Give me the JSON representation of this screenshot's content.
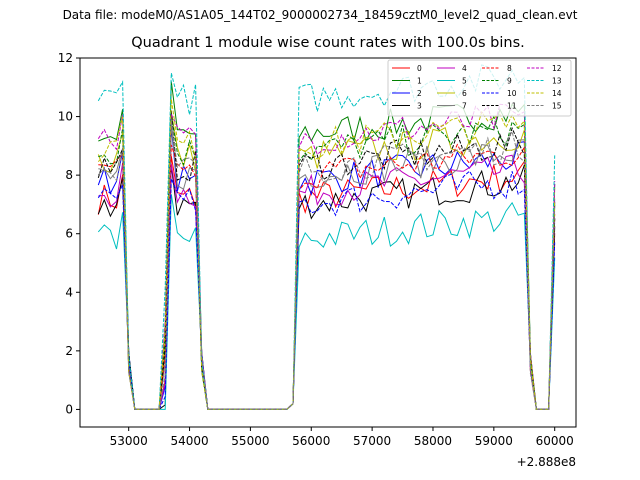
{
  "suptitle": "Data file: modeM0/AS1A05_144T02_9000002734_18459cztM0_level2_quad_clean.evt",
  "chart_data": {
    "type": "line",
    "title": "Quadrant 1 module wise count rates with 100.0s bins.",
    "xlabel": "",
    "ylabel": "",
    "x_offset_label": "+2.888e8",
    "xlim": [
      52200,
      60350
    ],
    "ylim": [
      -0.6,
      12
    ],
    "xticks": [
      53000,
      54000,
      55000,
      56000,
      57000,
      58000,
      59000,
      60000
    ],
    "yticks": [
      0,
      2,
      4,
      6,
      8,
      10,
      12
    ],
    "grid": false,
    "legend_placement": "top-right",
    "segments": [
      {
        "start": 52500,
        "end": 52900
      },
      {
        "start": 53600,
        "end": 54100
      },
      {
        "start": 55700,
        "end": 59500
      },
      {
        "start": 59950,
        "end": 60000
      }
    ],
    "series": [
      {
        "name": "0",
        "color": "#ff0000",
        "dash": "solid",
        "base": 7.2
      },
      {
        "name": "1",
        "color": "#008000",
        "dash": "solid",
        "base": 9.4
      },
      {
        "name": "2",
        "color": "#0000ff",
        "dash": "solid",
        "base": 7.8
      },
      {
        "name": "3",
        "color": "#000000",
        "dash": "solid",
        "base": 7.0
      },
      {
        "name": "4",
        "color": "#bf00bf",
        "dash": "solid",
        "base": 7.4
      },
      {
        "name": "5",
        "color": "#00bfbf",
        "dash": "solid",
        "base": 5.8
      },
      {
        "name": "6",
        "color": "#bfbf00",
        "dash": "solid",
        "base": 8.6
      },
      {
        "name": "7",
        "color": "#7f7f7f",
        "dash": "solid",
        "base": 8.0
      },
      {
        "name": "8",
        "color": "#ff0000",
        "dash": "dashed",
        "base": 8.0
      },
      {
        "name": "9",
        "color": "#008000",
        "dash": "dashed",
        "base": 8.8
      },
      {
        "name": "10",
        "color": "#0000ff",
        "dash": "dashed",
        "base": 7.0
      },
      {
        "name": "11",
        "color": "#000000",
        "dash": "dashed",
        "base": 8.3
      },
      {
        "name": "12",
        "color": "#bf00bf",
        "dash": "dashed",
        "base": 9.2
      },
      {
        "name": "13",
        "color": "#00bfbf",
        "dash": "dashed",
        "base": 10.6
      },
      {
        "name": "14",
        "color": "#bfbf00",
        "dash": "dashed",
        "base": 9.0
      },
      {
        "name": "15",
        "color": "#7f7f7f",
        "dash": "dashed",
        "base": 8.2
      }
    ]
  }
}
